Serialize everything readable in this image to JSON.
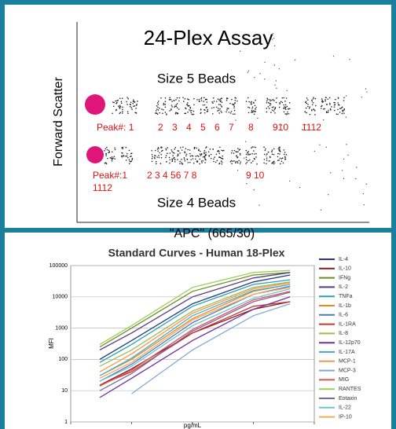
{
  "chart_data": [
    {
      "type": "scatter",
      "title": "24-Plex Assay",
      "ylabel": "Forward Scatter",
      "xlabel": "\"APC\" (665/30)",
      "annotations": [
        "Size 5 Beads",
        "Size 4 Beads"
      ],
      "peak_labels": [
        "Peak#: 1",
        "2",
        "3",
        "4",
        "5",
        "6",
        "7",
        "8",
        "910",
        "1112",
        "Peak#:1",
        "1112",
        "2 3 4 56 7 8",
        "9 10"
      ]
    },
    {
      "type": "line",
      "title": "Standard Curves - Human 18-Plex",
      "xlabel": "pg/mL",
      "ylabel": "MFI",
      "log_x": true,
      "log_y": true,
      "grid": true,
      "legend": "right",
      "x": [
        3,
        10,
        100,
        1000,
        4000
      ],
      "xlim": [
        1,
        10000
      ],
      "xticks": [
        1,
        10,
        100,
        1000,
        10000
      ],
      "ylim": [
        1,
        100000
      ],
      "yticks": [
        1,
        10,
        100,
        1000,
        10000,
        100000
      ],
      "series": [
        {
          "name": "IL-4",
          "color": "#1f3d7a",
          "values": [
            100,
            400,
            6000,
            30000,
            50000
          ]
        },
        {
          "name": "IL-10",
          "color": "#8b1a1a",
          "values": [
            15,
            50,
            700,
            4000,
            7000
          ]
        },
        {
          "name": "IFNg",
          "color": "#6b8e23",
          "values": [
            250,
            1000,
            15000,
            50000,
            60000
          ]
        },
        {
          "name": "IL-2",
          "color": "#5b3a8c",
          "values": [
            200,
            700,
            10000,
            40000,
            60000
          ]
        },
        {
          "name": "TNFa",
          "color": "#2aa0b8",
          "values": [
            80,
            300,
            5000,
            25000,
            35000
          ]
        },
        {
          "name": "IL-1b",
          "color": "#e08a2a",
          "values": [
            30,
            100,
            2000,
            15000,
            25000
          ]
        },
        {
          "name": "IL-6",
          "color": "#4a7ab8",
          "values": [
            20,
            70,
            1500,
            12000,
            22000
          ]
        },
        {
          "name": "IL-1RA",
          "color": "#c0392b",
          "values": [
            15,
            40,
            700,
            5000,
            7000
          ]
        },
        {
          "name": "IL-8",
          "color": "#9bbb59",
          "values": [
            60,
            200,
            3500,
            20000,
            30000
          ]
        },
        {
          "name": "IL-12p70",
          "color": "#7030a0",
          "values": [
            6,
            25,
            400,
            4000,
            10000
          ]
        },
        {
          "name": "IL-17A",
          "color": "#4bacc6",
          "values": [
            30,
            110,
            2500,
            16000,
            25000
          ]
        },
        {
          "name": "MCP-1",
          "color": "#f79646",
          "values": [
            40,
            150,
            3000,
            18000,
            28000
          ]
        },
        {
          "name": "MCP-3",
          "color": "#7fa8d8",
          "values": [
            null,
            8,
            200,
            2500,
            6000
          ]
        },
        {
          "name": "MIG",
          "color": "#d9534f",
          "values": [
            14,
            45,
            900,
            8000,
            15000
          ]
        },
        {
          "name": "RANTES",
          "color": "#9bcf5b",
          "values": [
            300,
            1200,
            20000,
            60000,
            70000
          ]
        },
        {
          "name": "Eotaxin",
          "color": "#8064a2",
          "values": [
            10,
            35,
            800,
            7000,
            14000
          ]
        },
        {
          "name": "IL-22",
          "color": "#6bc3d6",
          "values": [
            20,
            60,
            1200,
            9000,
            18000
          ]
        },
        {
          "name": "IP-10",
          "color": "#f5a860",
          "values": [
            25,
            80,
            1800,
            12000,
            20000
          ]
        }
      ]
    }
  ]
}
